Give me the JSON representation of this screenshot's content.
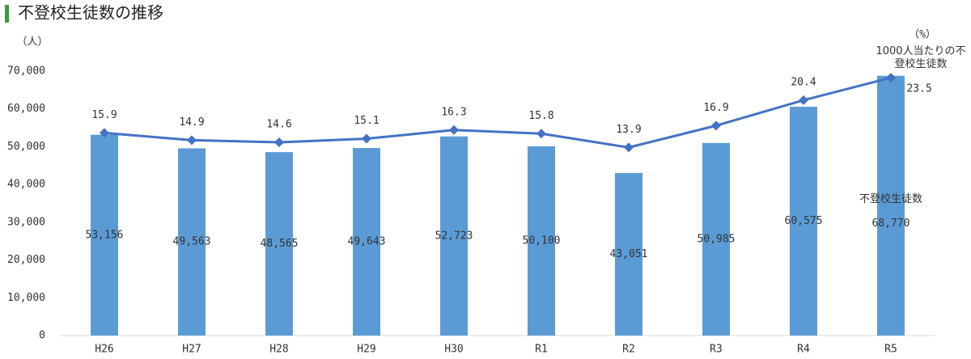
{
  "chart_data": {
    "type": "bar-line",
    "title": "不登校生徒数の推移",
    "y_label": "（人）",
    "y2_label": "（%）",
    "categories": [
      "H26",
      "H27",
      "H28",
      "H29",
      "H30",
      "R1",
      "R2",
      "R3",
      "R4",
      "R5"
    ],
    "series": [
      {
        "name": "不登校生徒数",
        "type": "bar",
        "color": "#5b9bd5",
        "values": [
          53156,
          49563,
          48565,
          49643,
          52723,
          50100,
          43051,
          50985,
          60575,
          68770
        ],
        "value_labels": [
          "53,156",
          "49,563",
          "48,565",
          "49,643",
          "52,723",
          "50,100",
          "43,051",
          "50,985",
          "60,575",
          "68,770"
        ]
      },
      {
        "name": "1000人当たりの不登校生徒数",
        "type": "line",
        "axis": "y2",
        "color": "#4472c4",
        "values": [
          15.9,
          14.9,
          14.6,
          15.1,
          16.3,
          15.8,
          13.9,
          16.9,
          20.4,
          23.5
        ]
      }
    ],
    "ylim": [
      0,
      70000
    ],
    "yticks": [
      0,
      {
        "value": 10000,
        "label": "10,000"
      },
      {
        "value": 20000,
        "label": "20,000"
      },
      {
        "value": 30000,
        "label": "30,000"
      },
      {
        "value": 40000,
        "label": "40,000"
      },
      {
        "value": 50000,
        "label": "50,000"
      },
      {
        "value": 60000,
        "label": "60,000"
      },
      {
        "value": 70000,
        "label": "70,000"
      }
    ],
    "y2lim": [
      -12,
      24.4
    ],
    "grid": false
  }
}
